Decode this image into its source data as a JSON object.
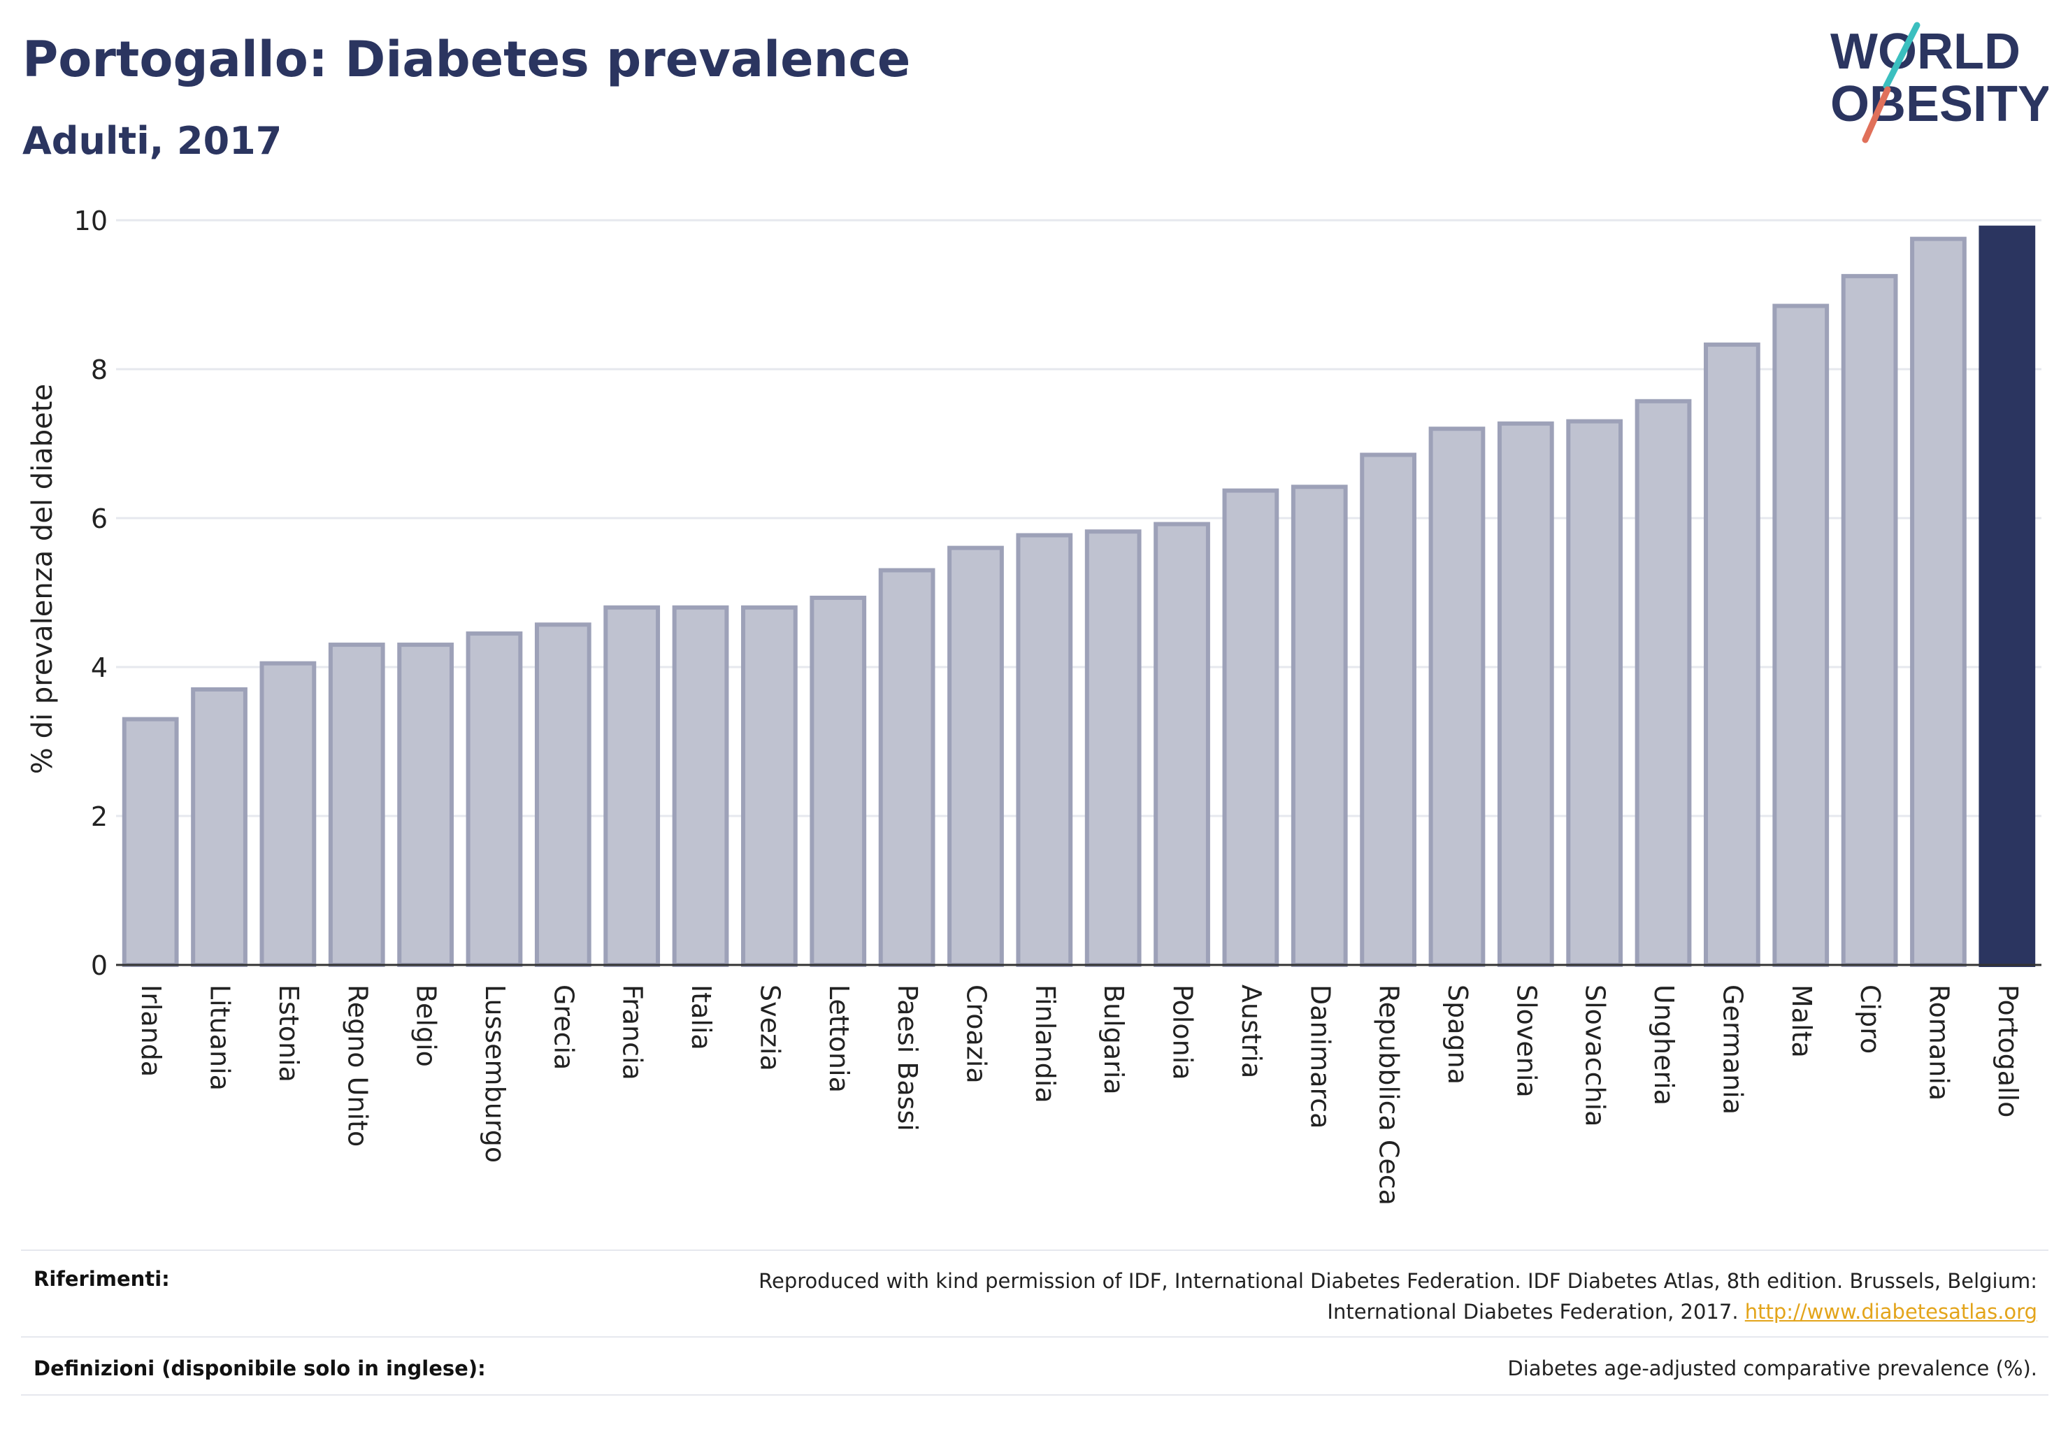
{
  "header": {
    "title": "Portogallo: Diabetes prevalence",
    "subtitle": "Adulti, 2017"
  },
  "logo": {
    "line1": "WORLD",
    "line2": "OBESITY",
    "colors": {
      "text": "#2b3560",
      "slash_top": "#3bbfbf",
      "slash_bottom": "#e0705a"
    }
  },
  "chart_data": {
    "type": "bar",
    "ylabel": "% di prevalenza del diabete",
    "xlabel": "",
    "ylim": [
      0,
      10
    ],
    "yticks": [
      0,
      2,
      4,
      6,
      8,
      10
    ],
    "grid": true,
    "highlight": "Portogallo",
    "colors": {
      "bar": "#bfc2d0",
      "bar_edge": "#9da1b8",
      "highlight": "#2b3560"
    },
    "categories": [
      "Irlanda",
      "Lituania",
      "Estonia",
      "Regno Unito",
      "Belgio",
      "Lussemburgo",
      "Grecia",
      "Francia",
      "Italia",
      "Svezia",
      "Lettonia",
      "Paesi Bassi",
      "Croazia",
      "Finlandia",
      "Bulgaria",
      "Polonia",
      "Austria",
      "Danimarca",
      "Repubblica Ceca",
      "Spagna",
      "Slovenia",
      "Slovacchia",
      "Ungheria",
      "Germania",
      "Malta",
      "Cipro",
      "Romania",
      "Portogallo"
    ],
    "values": [
      3.3,
      3.7,
      4.05,
      4.3,
      4.3,
      4.45,
      4.57,
      4.8,
      4.8,
      4.8,
      4.93,
      5.3,
      5.6,
      5.77,
      5.82,
      5.92,
      6.37,
      6.42,
      6.85,
      7.2,
      7.27,
      7.3,
      7.57,
      8.33,
      8.85,
      9.25,
      9.75,
      9.9
    ]
  },
  "footer": {
    "references_label": "Riferimenti:",
    "references_text_line1": "Reproduced with kind permission of IDF, International Diabetes Federation. IDF Diabetes Atlas, 8th edition. Brussels, Belgium:",
    "references_text_line2": "International Diabetes Federation, 2017.",
    "references_link": "http://www.diabetesatlas.org",
    "definitions_label": "Definizioni (disponibile solo in inglese):",
    "definitions_text": "Diabetes age-adjusted comparative prevalence (%)."
  }
}
